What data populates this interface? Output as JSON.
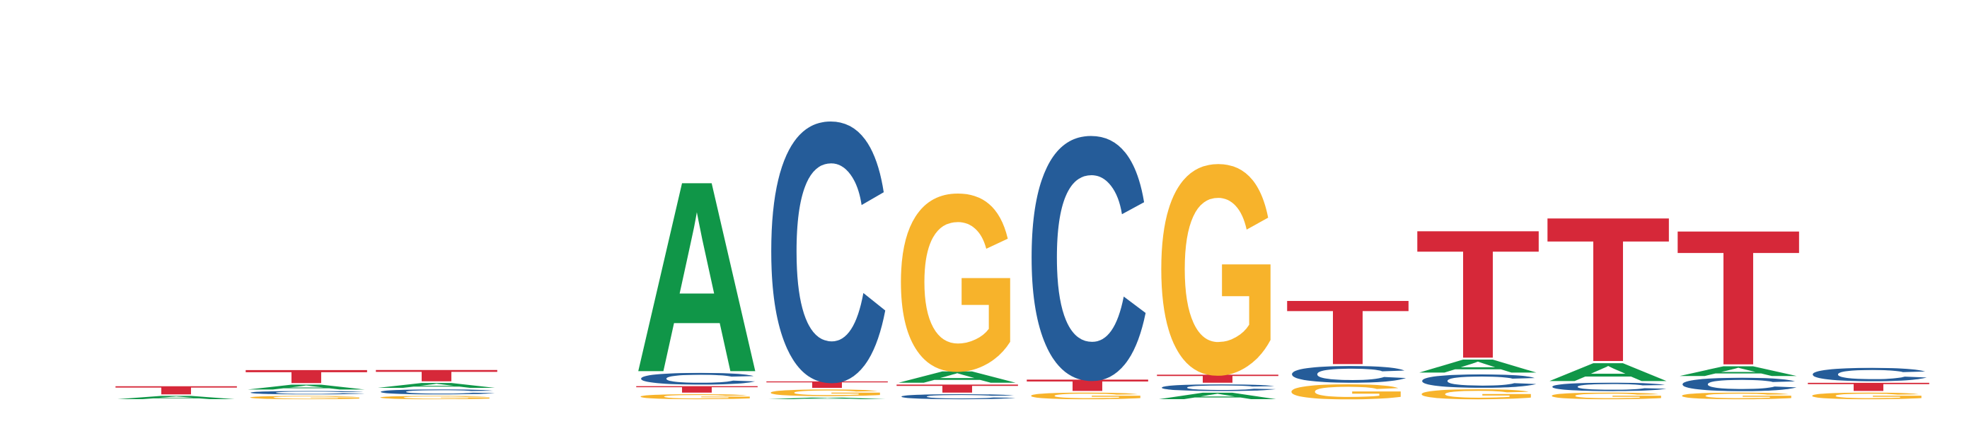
{
  "colors": {
    "A": "#109648",
    "C": "#255C99",
    "G": "#F7B32B",
    "T": "#D62839"
  },
  "logo": {
    "y_max_bits": 2.0,
    "columns": [
      {
        "position": 1,
        "stack": [
          {
            "base": "A",
            "bits": 0.02
          },
          {
            "base": "T",
            "bits": 0.05
          }
        ]
      },
      {
        "position": 2,
        "stack": [
          {
            "base": "G",
            "bits": 0.02
          },
          {
            "base": "C",
            "bits": 0.02
          },
          {
            "base": "A",
            "bits": 0.03
          },
          {
            "base": "T",
            "bits": 0.08
          }
        ]
      },
      {
        "position": 3,
        "stack": [
          {
            "base": "G",
            "bits": 0.02
          },
          {
            "base": "C",
            "bits": 0.03
          },
          {
            "base": "A",
            "bits": 0.03
          },
          {
            "base": "T",
            "bits": 0.07
          }
        ]
      },
      {
        "position": 4,
        "stack": []
      },
      {
        "position": 5,
        "stack": [
          {
            "base": "G",
            "bits": 0.03
          },
          {
            "base": "T",
            "bits": 0.04
          },
          {
            "base": "C",
            "bits": 0.07
          },
          {
            "base": "A",
            "bits": 1.16
          }
        ]
      },
      {
        "position": 6,
        "stack": [
          {
            "base": "A",
            "bits": 0.01
          },
          {
            "base": "G",
            "bits": 0.04
          },
          {
            "base": "T",
            "bits": 0.04
          },
          {
            "base": "C",
            "bits": 1.57
          }
        ]
      },
      {
        "position": 7,
        "stack": [
          {
            "base": "C",
            "bits": 0.03
          },
          {
            "base": "T",
            "bits": 0.05
          },
          {
            "base": "A",
            "bits": 0.07
          },
          {
            "base": "G",
            "bits": 1.07
          }
        ]
      },
      {
        "position": 8,
        "stack": [
          {
            "base": "G",
            "bits": 0.04
          },
          {
            "base": "T",
            "bits": 0.07
          },
          {
            "base": "C",
            "bits": 1.47
          }
        ]
      },
      {
        "position": 9,
        "stack": [
          {
            "base": "A",
            "bits": 0.04
          },
          {
            "base": "C",
            "bits": 0.04
          },
          {
            "base": "T",
            "bits": 0.05
          },
          {
            "base": "G",
            "bits": 1.27
          }
        ]
      },
      {
        "position": 10,
        "stack": [
          {
            "base": "G",
            "bits": 0.09
          },
          {
            "base": "C",
            "bits": 0.1
          },
          {
            "base": "T",
            "bits": 0.39
          }
        ]
      },
      {
        "position": 11,
        "stack": [
          {
            "base": "G",
            "bits": 0.06
          },
          {
            "base": "C",
            "bits": 0.08
          },
          {
            "base": "A",
            "bits": 0.08
          },
          {
            "base": "T",
            "bits": 0.78
          }
        ]
      },
      {
        "position": 12,
        "stack": [
          {
            "base": "G",
            "bits": 0.04
          },
          {
            "base": "C",
            "bits": 0.05
          },
          {
            "base": "A",
            "bits": 0.11
          },
          {
            "base": "T",
            "bits": 0.88
          }
        ]
      },
      {
        "position": 13,
        "stack": [
          {
            "base": "G",
            "bits": 0.04
          },
          {
            "base": "C",
            "bits": 0.08
          },
          {
            "base": "A",
            "bits": 0.06
          },
          {
            "base": "T",
            "bits": 0.82
          }
        ]
      },
      {
        "position": 14,
        "stack": [
          {
            "base": "G",
            "bits": 0.04
          },
          {
            "base": "T",
            "bits": 0.05
          },
          {
            "base": "C",
            "bits": 0.08
          }
        ]
      }
    ]
  }
}
